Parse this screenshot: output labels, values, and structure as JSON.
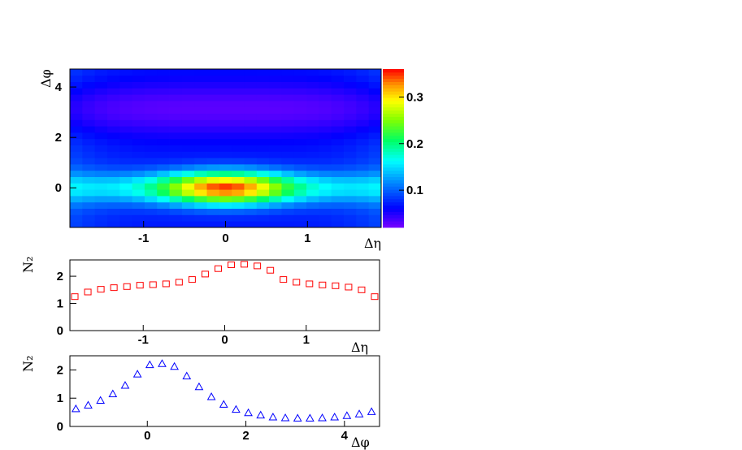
{
  "chart_data": [
    {
      "type": "heatmap",
      "title": "",
      "xlabel": "Δη",
      "ylabel": "Δφ",
      "xlim": [
        -1.9,
        1.9
      ],
      "ylim": [
        -1.571,
        4.712
      ],
      "x_ticks": [
        "-1",
        "0",
        "1"
      ],
      "y_ticks": [
        "0",
        "2",
        "4"
      ],
      "nx": 25,
      "ny": 25,
      "colorbar": {
        "ticks": [
          "0.1",
          "0.2",
          "0.3"
        ],
        "zlim": [
          0.02,
          0.36
        ]
      },
      "model": {
        "baseline": 0.07,
        "near_side_peak": {
          "amplitude": 0.28,
          "sigma_deta": 0.55,
          "sigma_dphi": 0.45,
          "center": [
            0,
            0
          ]
        },
        "away_side_ridge": {
          "amplitude": -0.04,
          "center_dphi": 3.14
        },
        "edge_enhancement_at_large_deta": 0.02
      }
    },
    {
      "type": "scatter",
      "title": "",
      "xlabel": "Δη",
      "ylabel": "N₂",
      "marker": "open-square",
      "color": "#ff0000",
      "xlim": [
        -1.9,
        1.9
      ],
      "ylim": [
        0,
        2.6
      ],
      "x_ticks": [
        "-1",
        "0",
        "1"
      ],
      "y_ticks": [
        "0",
        "1",
        "2"
      ],
      "x": [
        -1.84,
        -1.68,
        -1.52,
        -1.36,
        -1.2,
        -1.04,
        -0.88,
        -0.72,
        -0.56,
        -0.4,
        -0.24,
        -0.08,
        0.08,
        0.24,
        0.4,
        0.56,
        0.72,
        0.88,
        1.04,
        1.2,
        1.36,
        1.52,
        1.68,
        1.84
      ],
      "y": [
        1.25,
        1.42,
        1.52,
        1.58,
        1.62,
        1.67,
        1.69,
        1.72,
        1.78,
        1.88,
        2.08,
        2.28,
        2.42,
        2.44,
        2.38,
        2.22,
        1.88,
        1.78,
        1.72,
        1.68,
        1.65,
        1.6,
        1.5,
        1.25
      ]
    },
    {
      "type": "scatter",
      "title": "",
      "xlabel": "Δφ",
      "ylabel": "N₂",
      "marker": "open-triangle",
      "color": "#0000ff",
      "xlim": [
        -1.571,
        4.712
      ],
      "ylim": [
        0,
        2.5
      ],
      "x_ticks": [
        "0",
        "2",
        "4"
      ],
      "y_ticks": [
        "0",
        "1",
        "2"
      ],
      "x": [
        -1.45,
        -1.2,
        -0.95,
        -0.7,
        -0.45,
        -0.2,
        0.05,
        0.3,
        0.55,
        0.8,
        1.05,
        1.3,
        1.55,
        1.8,
        2.05,
        2.3,
        2.55,
        2.8,
        3.05,
        3.3,
        3.55,
        3.8,
        4.05,
        4.3,
        4.55
      ],
      "y": [
        0.62,
        0.75,
        0.92,
        1.15,
        1.45,
        1.85,
        2.18,
        2.22,
        2.12,
        1.78,
        1.4,
        1.05,
        0.78,
        0.6,
        0.48,
        0.4,
        0.33,
        0.3,
        0.29,
        0.29,
        0.3,
        0.33,
        0.38,
        0.44,
        0.52
      ]
    }
  ]
}
